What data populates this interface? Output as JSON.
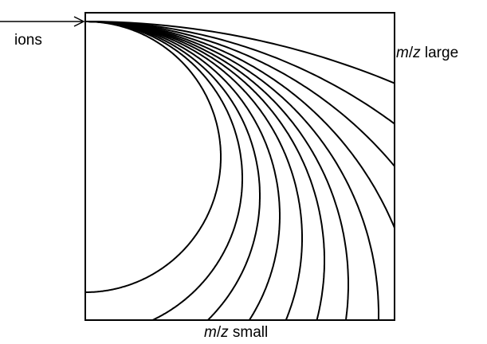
{
  "labels": {
    "ions": "ions",
    "mz_large": {
      "m": "m",
      "slash": "/",
      "z": "z",
      "suffix": " large"
    },
    "mz_small": {
      "m": "m",
      "slash": "/",
      "z": "z",
      "suffix": " small"
    }
  },
  "colors": {
    "stroke": "#000000",
    "background": "#ffffff"
  },
  "trajectory_count": 12,
  "elements": {
    "frame": "square-frame",
    "entry_arrow": "ion-entry-arrow"
  }
}
